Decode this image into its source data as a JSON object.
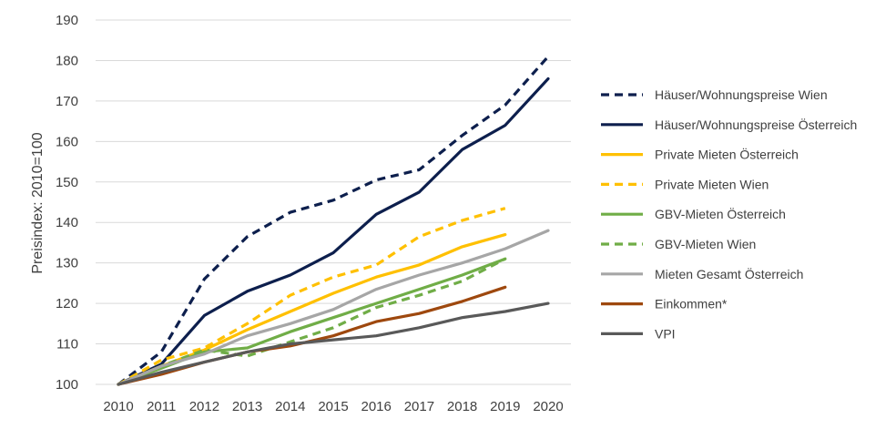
{
  "chart_data": {
    "type": "line",
    "x": [
      "2010",
      "2011",
      "2012",
      "2013",
      "2014",
      "2015",
      "2016",
      "2017",
      "2018",
      "2019",
      "2020"
    ],
    "yticks": [
      "100",
      "110",
      "120",
      "130",
      "140",
      "150",
      "160",
      "170",
      "180",
      "190"
    ],
    "ylabel": "Preisindex: 2010=100",
    "ylim": [
      100,
      190
    ],
    "grid": "horizontal",
    "legend_position": "right",
    "series": [
      {
        "name": "Häuser/Wohnungspreise Wien",
        "color": "#0d1f4d",
        "dashed": true,
        "values": [
          100,
          108,
          126,
          136.5,
          142.5,
          145.5,
          150.5,
          153,
          161.5,
          169,
          181
        ]
      },
      {
        "name": "Häuser/Wohnungspreise Österreich",
        "color": "#0d1f4d",
        "dashed": false,
        "values": [
          100,
          105,
          117,
          123,
          127,
          132.5,
          142,
          147.5,
          158,
          164,
          175.5
        ]
      },
      {
        "name": "Private Mieten Österreich",
        "color": "#ffc000",
        "dashed": false,
        "values": [
          100,
          104.5,
          108.5,
          113.5,
          118,
          122.5,
          126.5,
          129.5,
          134,
          137,
          null
        ]
      },
      {
        "name": "Private Mieten Wien",
        "color": "#ffc000",
        "dashed": true,
        "values": [
          100,
          106,
          109,
          115,
          122,
          126.5,
          129.5,
          136.5,
          140.5,
          143.5,
          null
        ]
      },
      {
        "name": "GBV-Mieten Österreich",
        "color": "#70ad47",
        "dashed": false,
        "values": [
          100,
          104,
          108,
          109,
          113,
          116.5,
          120,
          123.5,
          127,
          131,
          null
        ]
      },
      {
        "name": "GBV-Mieten Wien",
        "color": "#70ad47",
        "dashed": true,
        "values": [
          100,
          104.5,
          108.5,
          107,
          110.5,
          114,
          119,
          122,
          125.5,
          131,
          null
        ]
      },
      {
        "name": "Mieten Gesamt Österreich",
        "color": "#a6a6a6",
        "dashed": false,
        "values": [
          100,
          104.5,
          107.5,
          112,
          115,
          118.5,
          123.5,
          127,
          130,
          133.5,
          138
        ]
      },
      {
        "name": "Einkommen*",
        "color": "#9e480e",
        "dashed": false,
        "values": [
          100,
          102.5,
          105.5,
          108,
          109.5,
          112,
          115.5,
          117.5,
          120.5,
          124,
          null
        ]
      },
      {
        "name": "VPI",
        "color": "#595959",
        "dashed": false,
        "values": [
          100,
          103,
          105.5,
          108,
          110,
          111,
          112,
          114,
          116.5,
          118,
          120
        ]
      }
    ]
  }
}
